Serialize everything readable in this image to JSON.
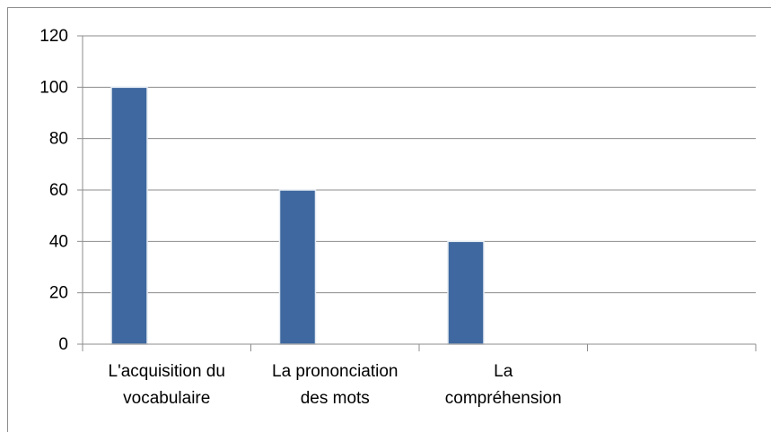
{
  "chart_data": {
    "type": "bar",
    "categories": [
      "L'acquisition du\nvocabulaire",
      "La prononciation\ndes mots",
      "La\ncompréhension",
      null
    ],
    "values": [
      100,
      60,
      40,
      null
    ],
    "color": "#3e689f",
    "ylim": [
      0,
      120
    ],
    "yticks": [
      0,
      20,
      40,
      60,
      80,
      100,
      120
    ],
    "grid": true
  }
}
